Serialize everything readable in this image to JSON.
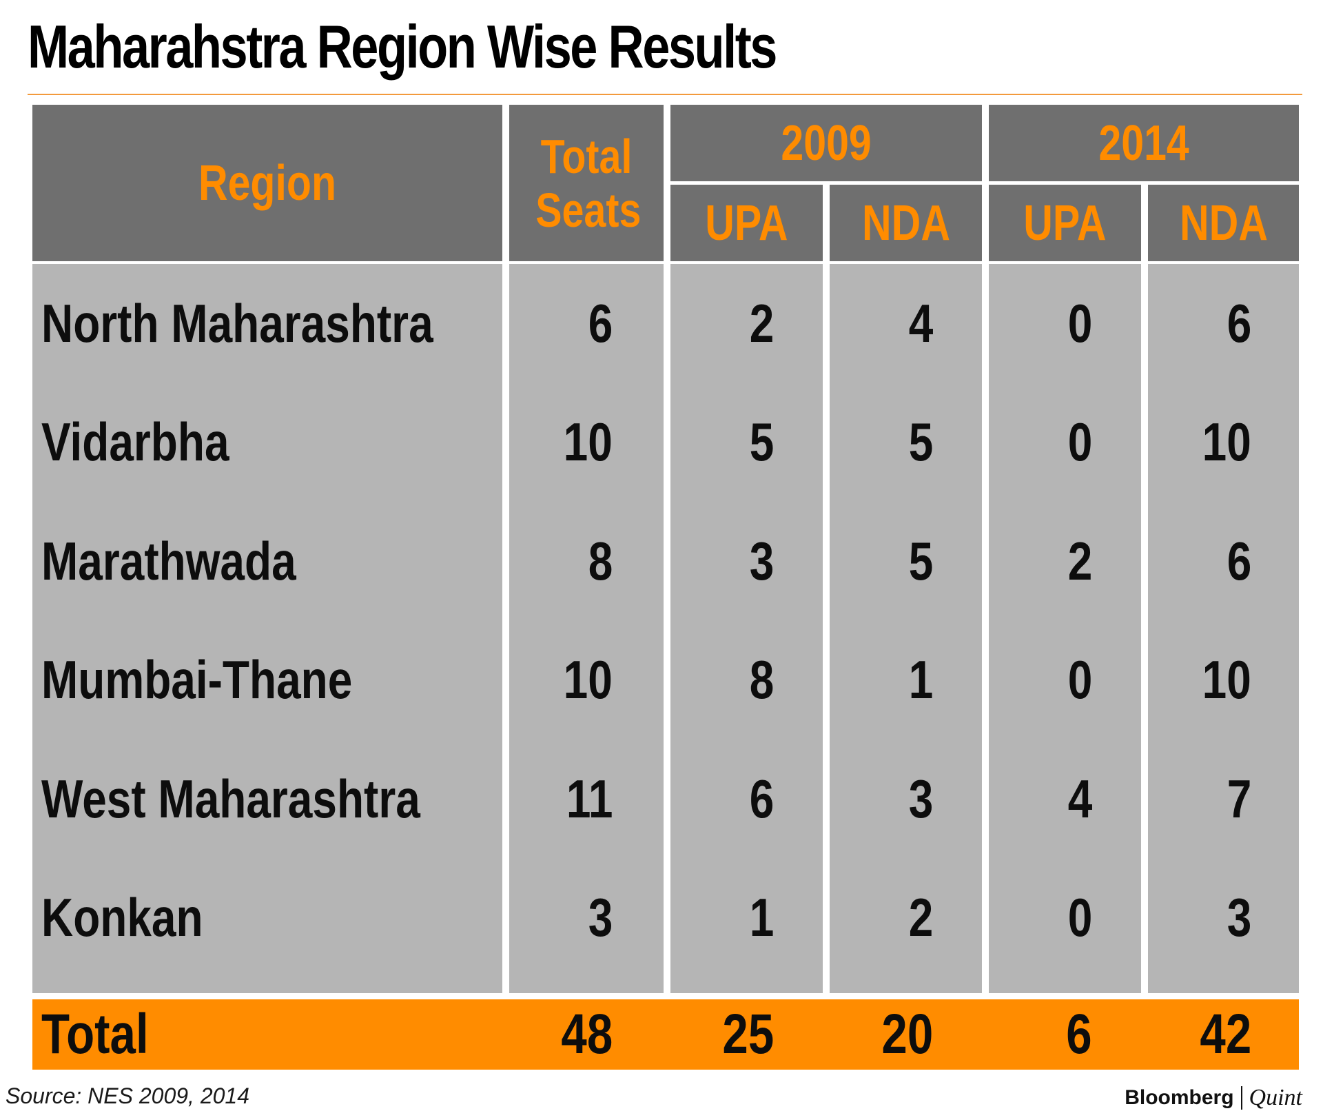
{
  "title": "Maharahstra Region Wise Results",
  "source": "Source: NES 2009, 2014",
  "brand": {
    "left": "Bloomberg",
    "right": "Quint"
  },
  "colors": {
    "header_bg": "#6f6f6f",
    "header_text": "#ff8c00",
    "body_bg": "#b5b5b5",
    "total_bg": "#ff8c00",
    "rule": "#f39a3c"
  },
  "chart_data": {
    "type": "table",
    "title": "Maharahstra Region Wise Results",
    "headers": {
      "region": "Region",
      "total_seats": "Total Seats",
      "year_2009": "2009",
      "year_2014": "2014",
      "upa": "UPA",
      "nda": "NDA"
    },
    "rows": [
      {
        "region": "North Maharashtra",
        "total": "6",
        "upa2009": "2",
        "nda2009": "4",
        "upa2014": "0",
        "nda2014": "6"
      },
      {
        "region": "Vidarbha",
        "total": "10",
        "upa2009": "5",
        "nda2009": "5",
        "upa2014": "0",
        "nda2014": "10"
      },
      {
        "region": "Marathwada",
        "total": "8",
        "upa2009": "3",
        "nda2009": "5",
        "upa2014": "2",
        "nda2014": "6"
      },
      {
        "region": "Mumbai-Thane",
        "total": "10",
        "upa2009": "8",
        "nda2009": "1",
        "upa2014": "0",
        "nda2014": "10"
      },
      {
        "region": "West Maharashtra",
        "total": "11",
        "upa2009": "6",
        "nda2009": "3",
        "upa2014": "4",
        "nda2014": "7"
      },
      {
        "region": "Konkan",
        "total": "3",
        "upa2009": "1",
        "nda2009": "2",
        "upa2014": "0",
        "nda2014": "3"
      }
    ],
    "total": {
      "label": "Total",
      "total": "48",
      "upa2009": "25",
      "nda2009": "20",
      "upa2014": "6",
      "nda2014": "42"
    },
    "source": "Source: NES 2009, 2014"
  }
}
